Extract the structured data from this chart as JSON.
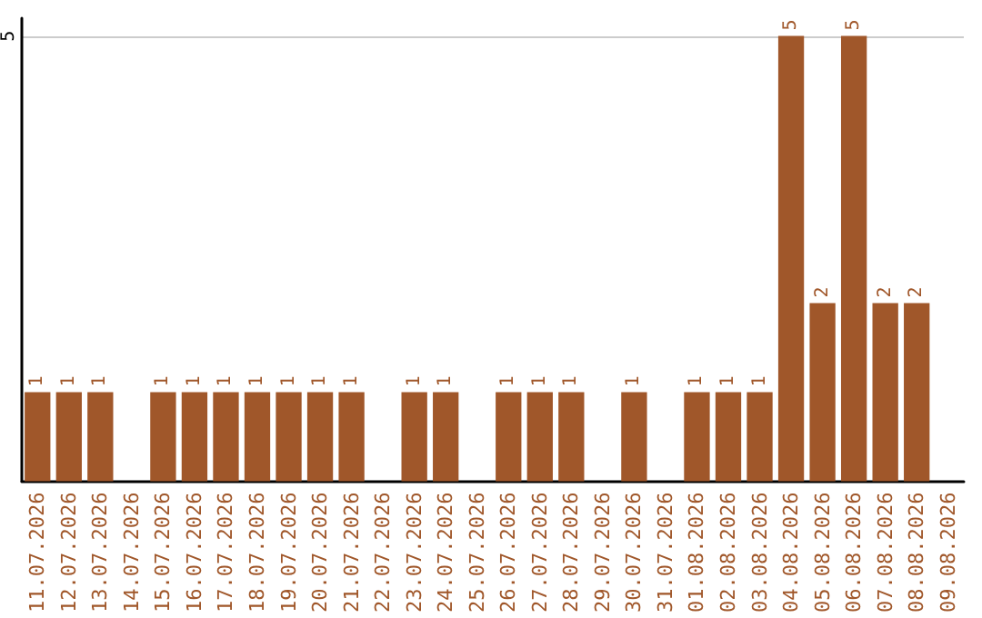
{
  "chart_data": {
    "type": "bar",
    "categories": [
      "11.07.2026",
      "12.07.2026",
      "13.07.2026",
      "14.07.2026",
      "15.07.2026",
      "16.07.2026",
      "17.07.2026",
      "18.07.2026",
      "19.07.2026",
      "20.07.2026",
      "21.07.2026",
      "22.07.2026",
      "23.07.2026",
      "24.07.2026",
      "25.07.2026",
      "26.07.2026",
      "27.07.2026",
      "28.07.2026",
      "29.07.2026",
      "30.07.2026",
      "31.07.2026",
      "01.08.2026",
      "02.08.2026",
      "03.08.2026",
      "04.08.2026",
      "05.08.2026",
      "06.08.2026",
      "07.08.2026",
      "08.08.2026",
      "09.08.2026"
    ],
    "values": [
      1,
      1,
      1,
      null,
      1,
      1,
      1,
      1,
      1,
      1,
      1,
      null,
      1,
      1,
      null,
      1,
      1,
      1,
      null,
      1,
      null,
      1,
      1,
      1,
      5,
      2,
      5,
      2,
      2,
      null
    ],
    "color": "#a0572a",
    "ylim": [
      0,
      5.2
    ],
    "yticks": [
      5
    ],
    "grid": "y",
    "data_labels": true
  }
}
